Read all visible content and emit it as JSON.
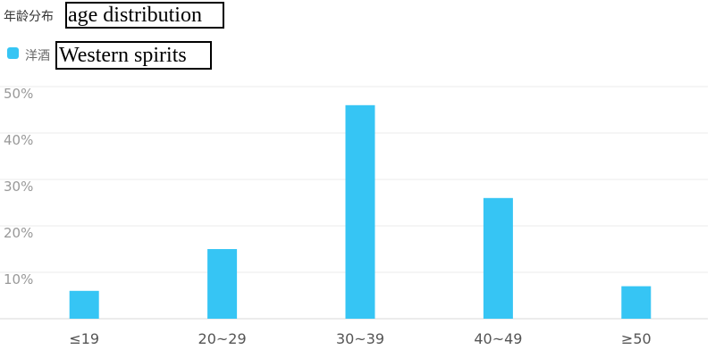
{
  "chart_data": {
    "type": "bar",
    "title": "年龄分布",
    "title_annotation": "age distribution",
    "categories": [
      "≤19",
      "20~29",
      "30~39",
      "40~49",
      "≥50"
    ],
    "series": [
      {
        "name": "洋酒",
        "name_annotation": "Western spirits",
        "values": [
          6,
          15,
          46,
          26,
          7
        ],
        "color": "#36c5f4"
      }
    ],
    "y_ticks": [
      "10%",
      "20%",
      "30%",
      "40%",
      "50%"
    ],
    "ylim": [
      0,
      50
    ],
    "y_unit": "%",
    "grid": true,
    "legend_position": "top-left"
  }
}
